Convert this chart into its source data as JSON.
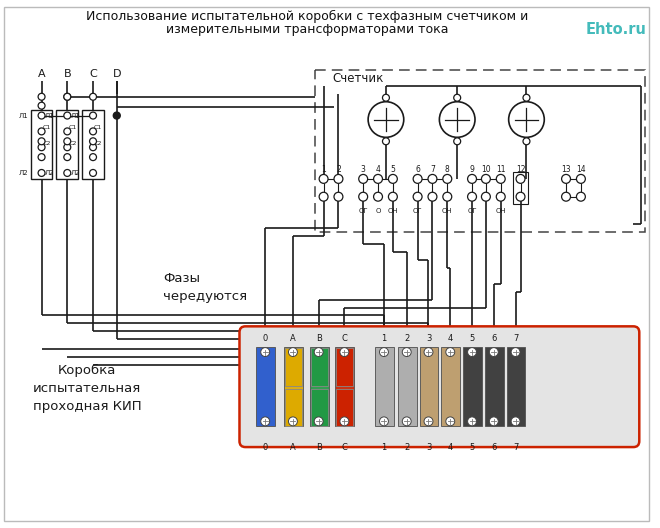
{
  "title_line1": "Использование испытательной коробки с техфазным счетчиком и",
  "title_line2": "измерительными трансформаторами тока",
  "watermark": "Ehto.ru",
  "label_schetchik": "Счетчик",
  "label_fazy": "Фазы\nчередуются",
  "label_korobka": "Коробка\nиспытательная\nпроходная КИП",
  "bg_color": "#ffffff",
  "line_color": "#1a1a1a",
  "red_box_color": "#cc2200",
  "title_color": "#111111",
  "watermark_color": "#44bbbb",
  "kip_cols_labels": [
    "0",
    "A",
    "B",
    "C",
    "1",
    "2",
    "3",
    "4",
    "5",
    "6",
    "7"
  ],
  "kip_colors": [
    "#2255cc",
    "#ddaa00",
    "#229944",
    "#cc2200",
    "#aaaaaa",
    "#aaaaaa",
    "#bb9966",
    "#bb9966",
    "#333333",
    "#333333",
    "#333333"
  ],
  "phase_labels": [
    "A",
    "B",
    "C",
    "D"
  ],
  "term_numbers": [
    1,
    2,
    3,
    4,
    5,
    6,
    7,
    8,
    9,
    10,
    11,
    12,
    13,
    14
  ],
  "og_on_labels": {
    "3": "ОГ",
    "4": "О",
    "5": "ОН",
    "6": "ОГ",
    "8": "ОН",
    "9": "ОГ",
    "11": "ОН"
  }
}
